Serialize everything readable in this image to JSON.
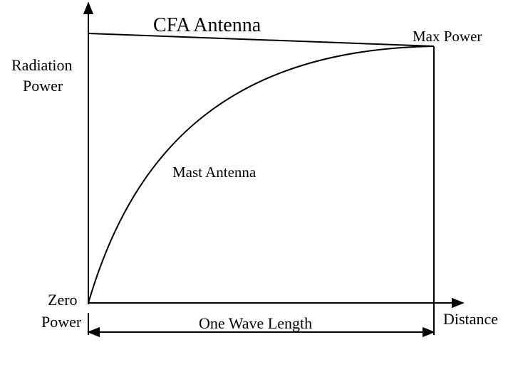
{
  "diagram": {
    "title": "CFA Antenna",
    "y_axis_label_line1": "Radiation",
    "y_axis_label_line2": "Power",
    "x_axis_label": "Distance",
    "max_label": "Max Power",
    "zero_label_line1": "Zero",
    "zero_label_line2": "Power",
    "curve_label": "Mast Antenna",
    "span_label": "One Wave Length"
  }
}
